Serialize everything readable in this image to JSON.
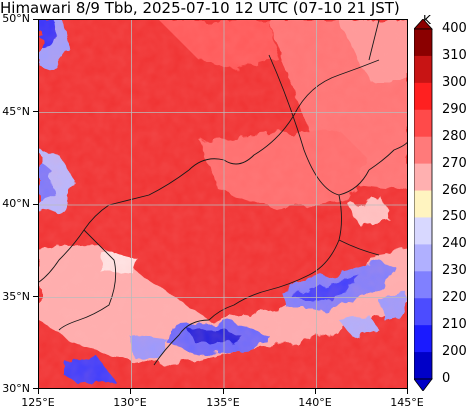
{
  "title": "Himawari 8/9 Tbb, 2025-07-10 12 UTC (07-10 21 JST)",
  "map": {
    "lat_ticks": [
      "50°N",
      "45°N",
      "40°N",
      "35°N",
      "30°N"
    ],
    "lon_ticks": [
      "125°E",
      "130°E",
      "135°E",
      "140°E",
      "145°E"
    ],
    "extent": {
      "lon_min": 125,
      "lon_max": 145,
      "lat_min": 30,
      "lat_max": 50
    },
    "gridlines": true
  },
  "colorbar": {
    "unit": "K",
    "labels": [
      "400",
      "310",
      "300",
      "290",
      "280",
      "270",
      "260",
      "250",
      "240",
      "230",
      "220",
      "210",
      "200",
      "0"
    ],
    "colors": [
      "#8b0000",
      "#c81414",
      "#ff2020",
      "#ff4a4a",
      "#ff7a7a",
      "#ffb0b0",
      "#fff4c0",
      "#d8d8ff",
      "#b0b0ff",
      "#8080ff",
      "#4c4cff",
      "#1a1aff",
      "#0000c8"
    ],
    "extend": "both"
  }
}
